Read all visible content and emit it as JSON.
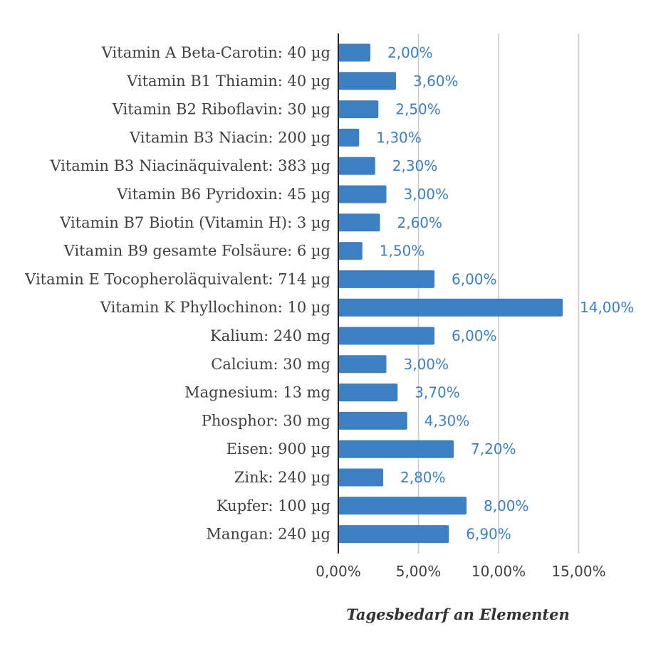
{
  "chart_data": {
    "type": "bar",
    "orientation": "horizontal",
    "categories": [
      "Vitamin A Beta-Carotin: 40 µg",
      "Vitamin B1 Thiamin: 40 µg",
      "Vitamin B2 Riboflavin: 30 µg",
      "Vitamin B3 Niacin: 200 µg",
      "Vitamin B3 Niacinäquivalent: 383 µg",
      "Vitamin B6 Pyridoxin: 45 µg",
      "Vitamin B7 Biotin (Vitamin H): 3 µg",
      "Vitamin B9 gesamte Folsäure: 6 µg",
      "Vitamin E Tocopheroläquivalent: 714 µg",
      "Vitamin K Phyllochinon: 10 µg",
      "Kalium: 240 mg",
      "Calcium: 30 mg",
      "Magnesium: 13 mg",
      "Phosphor: 30 mg",
      "Eisen: 900 µg",
      "Zink: 240 µg",
      "Kupfer: 100 µg",
      "Mangan: 240 µg"
    ],
    "values": [
      2.0,
      3.6,
      2.5,
      1.3,
      2.3,
      3.0,
      2.6,
      1.5,
      6.0,
      14.0,
      6.0,
      3.0,
      3.7,
      4.3,
      7.2,
      2.8,
      8.0,
      6.9
    ],
    "value_labels": [
      "2,00%",
      "3,60%",
      "2,50%",
      "1,30%",
      "2,30%",
      "3,00%",
      "2,60%",
      "1,50%",
      "6,00%",
      "14,00%",
      "6,00%",
      "3,00%",
      "3,70%",
      "4,30%",
      "7,20%",
      "2,80%",
      "8,00%",
      "6,90%"
    ],
    "x_ticks": [
      {
        "value": 0,
        "label": "0,00%"
      },
      {
        "value": 5,
        "label": "5,00%"
      },
      {
        "value": 10,
        "label": "10,00%"
      },
      {
        "value": 15,
        "label": "15,00%"
      }
    ],
    "xlim": [
      0,
      15
    ],
    "xlabel": "Tagesbedarf an Elementen",
    "title": "",
    "ylabel": "",
    "grid": "vertical",
    "legend": "none",
    "bar_color": "#3d7fc3",
    "label_color": "#3d7fc3"
  }
}
